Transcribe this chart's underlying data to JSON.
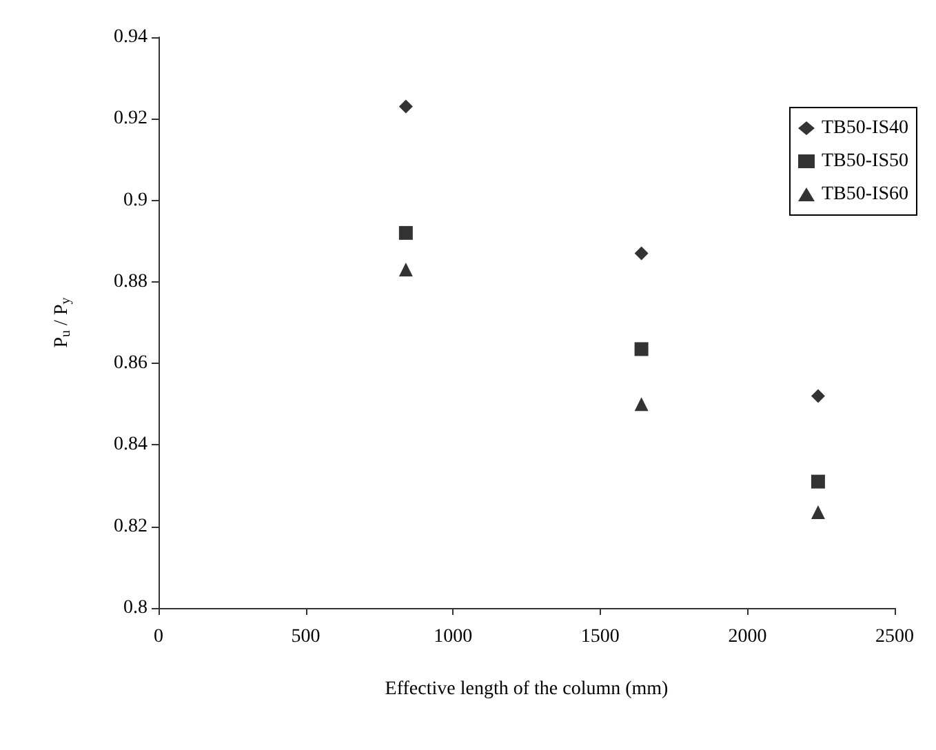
{
  "chart_data": {
    "type": "scatter",
    "xlabel": "Effective length of the column (mm)",
    "ylabel": "P$_{u}$ / P$_{y}$",
    "x": [
      840,
      1640,
      2240
    ],
    "series": [
      {
        "name": "TB50-IS40",
        "color": "#000000",
        "marker": "diamond",
        "values": [
          0.923,
          0.887,
          0.852
        ]
      },
      {
        "name": "TB50-IS50",
        "color": "#000000",
        "marker": "square",
        "values": [
          0.892,
          0.8635,
          0.831
        ]
      },
      {
        "name": "TB50-IS60",
        "color": "#000000",
        "marker": "triangle",
        "values": [
          0.883,
          0.85,
          0.8235
        ]
      }
    ],
    "xlim": [
      0,
      2500
    ],
    "xticks": [
      0,
      500,
      1000,
      1500,
      2000,
      2500
    ],
    "ylim": [
      0.8,
      0.94
    ],
    "yticks": [
      0.8,
      0.82,
      0.84,
      0.86,
      0.88,
      0.9,
      0.92,
      0.94
    ],
    "grid": false,
    "legend": "top right"
  }
}
